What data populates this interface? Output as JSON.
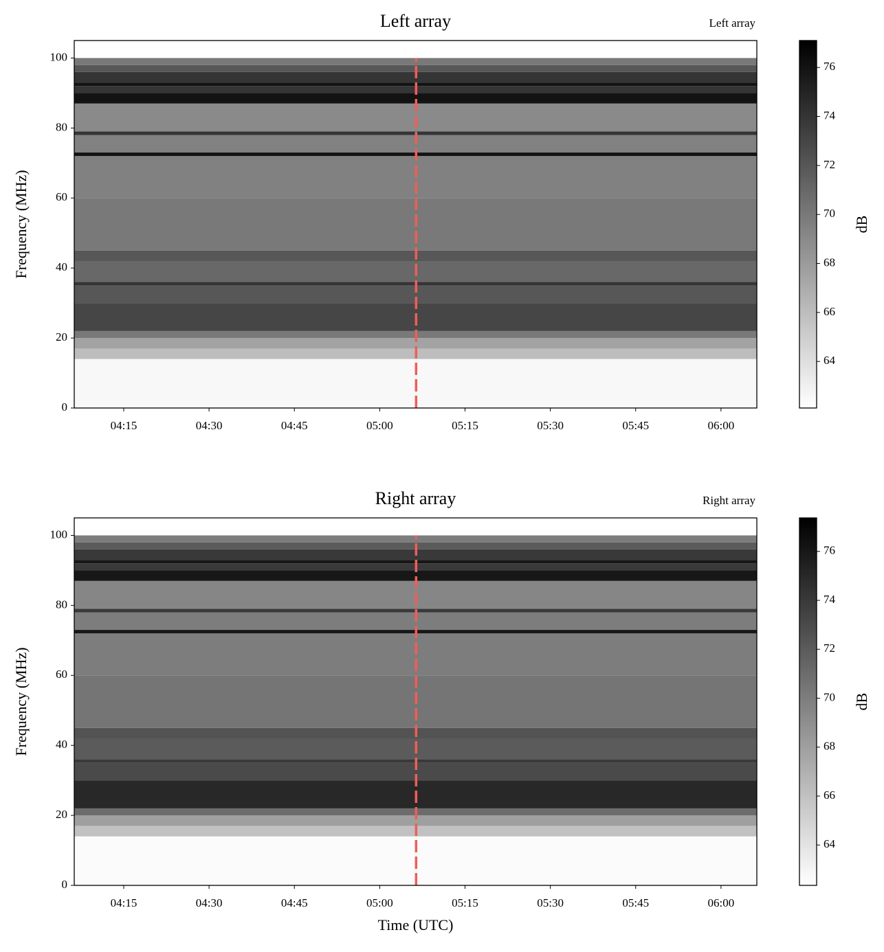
{
  "chart_data": [
    {
      "type": "heatmap",
      "title": "Left array",
      "corner_label": "Left array",
      "ylabel": "Frequency (MHz)",
      "cmap": "gray_r",
      "xlim": [
        246.3,
        366.3
      ],
      "xticks": [
        {
          "value": 255,
          "label": "04:15"
        },
        {
          "value": 270,
          "label": "04:30"
        },
        {
          "value": 285,
          "label": "04:45"
        },
        {
          "value": 300,
          "label": "05:00"
        },
        {
          "value": 315,
          "label": "05:15"
        },
        {
          "value": 330,
          "label": "05:30"
        },
        {
          "value": 345,
          "label": "05:45"
        },
        {
          "value": 360,
          "label": "06:00"
        }
      ],
      "ylim": [
        0,
        105
      ],
      "yticks": [
        0,
        20,
        40,
        60,
        80,
        100
      ],
      "freq_edges": [
        0,
        14,
        17,
        20,
        22,
        30,
        35,
        36,
        42,
        45,
        60,
        72,
        73,
        78,
        79,
        87,
        90,
        92,
        93,
        96,
        98,
        100
      ],
      "values": [
        62.5,
        66,
        67.5,
        70,
        73,
        72,
        74,
        71,
        72,
        70,
        69.5,
        76,
        69.5,
        74,
        69,
        76,
        74,
        76,
        74,
        72,
        70
      ],
      "clim": [
        62.1,
        77.1
      ],
      "cticks": [
        64,
        66,
        68,
        70,
        72,
        74,
        76
      ],
      "clabel": "dB",
      "vline": {
        "x": 306.4,
        "color": "#f25c5c"
      }
    },
    {
      "type": "heatmap",
      "title": "Right array",
      "corner_label": "Right array",
      "xlabel": "Time (UTC)",
      "ylabel": "Frequency (MHz)",
      "cmap": "gray_r",
      "xlim": [
        246.3,
        366.3
      ],
      "xticks": [
        {
          "value": 255,
          "label": "04:15"
        },
        {
          "value": 270,
          "label": "04:30"
        },
        {
          "value": 285,
          "label": "04:45"
        },
        {
          "value": 300,
          "label": "05:00"
        },
        {
          "value": 315,
          "label": "05:15"
        },
        {
          "value": 330,
          "label": "05:30"
        },
        {
          "value": 345,
          "label": "05:45"
        },
        {
          "value": 360,
          "label": "06:00"
        }
      ],
      "ylim": [
        0,
        105
      ],
      "yticks": [
        0,
        20,
        40,
        60,
        80,
        100
      ],
      "freq_edges": [
        0,
        14,
        17,
        20,
        22,
        30,
        35,
        36,
        42,
        45,
        60,
        72,
        73,
        78,
        79,
        87,
        90,
        92,
        93,
        96,
        98,
        100
      ],
      "values": [
        62.6,
        66,
        68,
        71,
        75,
        73,
        74,
        72,
        72.5,
        70.5,
        70,
        76,
        70,
        74,
        69.5,
        76,
        74,
        76,
        74,
        72,
        70
      ],
      "clim": [
        62.35,
        77.37
      ],
      "cticks": [
        64,
        66,
        68,
        70,
        72,
        74,
        76
      ],
      "clabel": "dB",
      "vline": {
        "x": 306.4,
        "color": "#f25c5c"
      }
    }
  ]
}
